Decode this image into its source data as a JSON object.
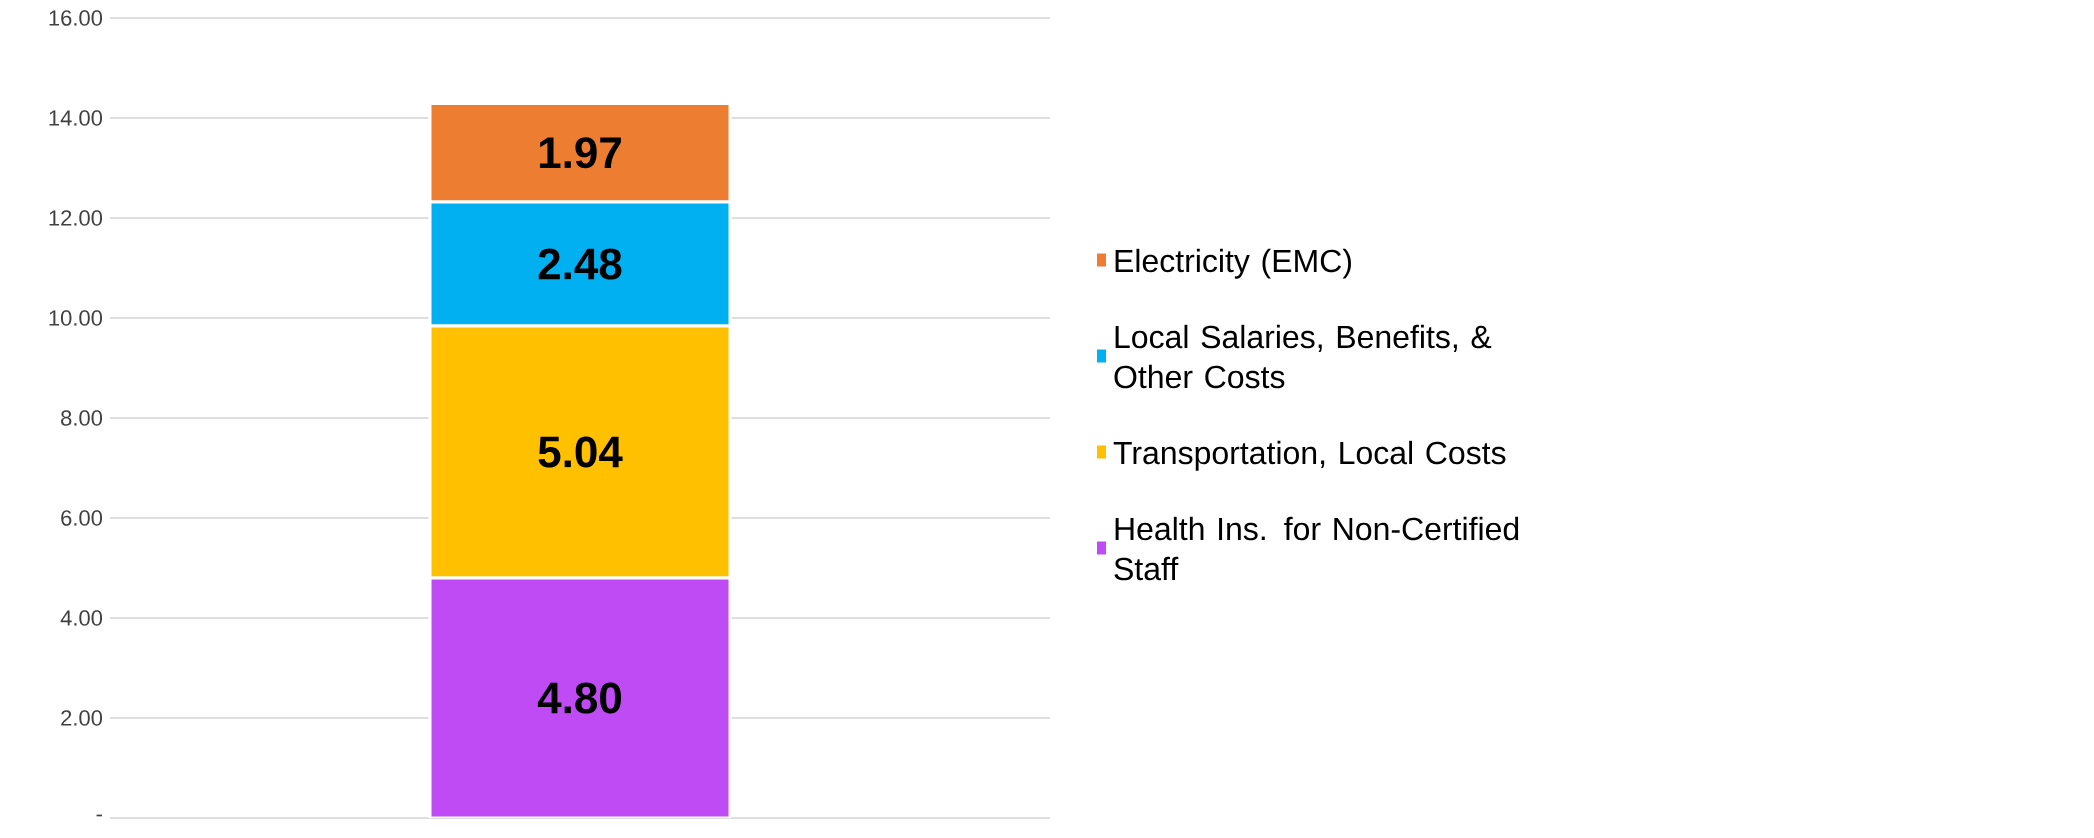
{
  "chart_data": {
    "type": "bar",
    "stacked": true,
    "categories": [
      null
    ],
    "series": [
      {
        "name": "Health Ins. for Non-Certified Staff",
        "color": "#bf4bf5",
        "values": [
          4.8
        ],
        "value_labels": [
          "4.80"
        ]
      },
      {
        "name": "Transportation, Local Costs",
        "color": "#ffc000",
        "values": [
          5.04
        ],
        "value_labels": [
          "5.04"
        ]
      },
      {
        "name": "Local Salaries, Benefits, & Other Costs",
        "color": "#00b0f0",
        "values": [
          2.48
        ],
        "value_labels": [
          "2.48"
        ]
      },
      {
        "name": "Electricity (EMC)",
        "color": "#ed7d31",
        "values": [
          1.97
        ],
        "value_labels": [
          "1.97"
        ]
      }
    ],
    "ylim": [
      0,
      16
    ],
    "yticks": [
      {
        "value": 0,
        "label": "-"
      },
      {
        "value": 2,
        "label": "2.00"
      },
      {
        "value": 4,
        "label": "4.00"
      },
      {
        "value": 6,
        "label": "6.00"
      },
      {
        "value": 8,
        "label": "8.00"
      },
      {
        "value": 10,
        "label": "10.00"
      },
      {
        "value": 12,
        "label": "12.00"
      },
      {
        "value": 14,
        "label": "14.00"
      },
      {
        "value": 16,
        "label": "16.00"
      }
    ],
    "grid": "y",
    "legend": "right",
    "tick_labels": "y"
  }
}
